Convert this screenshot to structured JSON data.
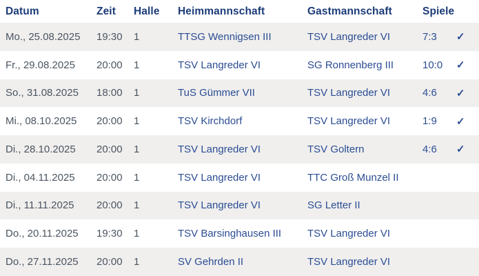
{
  "colors": {
    "header_text": "#1c3c78",
    "team_text": "#2b4d93",
    "meta_text": "#4b5560",
    "row_bg": "#ffffff",
    "row_alt_bg": "#f0efee"
  },
  "table": {
    "check_icon": "✓",
    "columns": [
      {
        "key": "datum",
        "label": "Datum"
      },
      {
        "key": "zeit",
        "label": "Zeit"
      },
      {
        "key": "halle",
        "label": "Halle"
      },
      {
        "key": "heim",
        "label": "Heimmannschaft"
      },
      {
        "key": "gast",
        "label": "Gastmannschaft"
      },
      {
        "key": "spiele",
        "label": "Spiele"
      }
    ],
    "rows": [
      {
        "datum": "Mo., 25.08.2025",
        "zeit": "19:30",
        "halle": "1",
        "heim": "TTSG Wennigsen III",
        "gast": "TSV Langreder VI",
        "spiele": "7:3",
        "played": true
      },
      {
        "datum": "Fr., 29.08.2025",
        "zeit": "20:00",
        "halle": "1",
        "heim": "TSV Langreder VI",
        "gast": "SG Ronnenberg III",
        "spiele": "10:0",
        "played": true
      },
      {
        "datum": "So., 31.08.2025",
        "zeit": "18:00",
        "halle": "1",
        "heim": "TuS Gümmer VII",
        "gast": "TSV Langreder VI",
        "spiele": "4:6",
        "played": true
      },
      {
        "datum": "Mi., 08.10.2025",
        "zeit": "20:00",
        "halle": "1",
        "heim": "TSV Kirchdorf",
        "gast": "TSV Langreder VI",
        "spiele": "1:9",
        "played": true
      },
      {
        "datum": "Di., 28.10.2025",
        "zeit": "20:00",
        "halle": "1",
        "heim": "TSV Langreder VI",
        "gast": "TSV Goltern",
        "spiele": "4:6",
        "played": true
      },
      {
        "datum": "Di., 04.11.2025",
        "zeit": "20:00",
        "halle": "1",
        "heim": "TSV Langreder VI",
        "gast": "TTC Groß Munzel II",
        "spiele": "",
        "played": false
      },
      {
        "datum": "Di., 11.11.2025",
        "zeit": "20:00",
        "halle": "1",
        "heim": "TSV Langreder VI",
        "gast": "SG Letter II",
        "spiele": "",
        "played": false
      },
      {
        "datum": "Do., 20.11.2025",
        "zeit": "19:30",
        "halle": "1",
        "heim": "TSV Barsinghausen III",
        "gast": "TSV Langreder VI",
        "spiele": "",
        "played": false
      },
      {
        "datum": "Do., 27.11.2025",
        "zeit": "20:00",
        "halle": "1",
        "heim": "SV Gehrden II",
        "gast": "TSV Langreder VI",
        "spiele": "",
        "played": false
      }
    ]
  }
}
